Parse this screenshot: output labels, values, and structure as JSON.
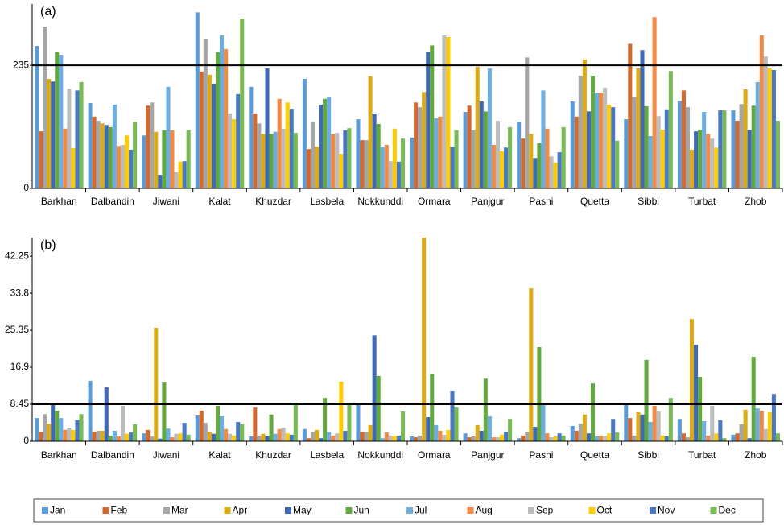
{
  "chart_data": [
    {
      "type": "bar",
      "label": "(a)",
      "categories": [
        "Barkhan",
        "Dalbandin",
        "Jiwani",
        "Kalat",
        "Khuzdar",
        "Lasbela",
        "Nokkunddi",
        "Ormara",
        "Panjgur",
        "Pasni",
        "Quetta",
        "Sibbi",
        "Turbat",
        "Zhob"
      ],
      "series": [
        {
          "name": "Jan",
          "color": "#5b9bd5",
          "values": [
            272,
            163,
            101,
            336,
            194,
            209,
            132,
            97,
            146,
            127,
            166,
            132,
            167,
            149
          ]
        },
        {
          "name": "Feb",
          "color": "#d2692f",
          "values": [
            109,
            137,
            158,
            223,
            143,
            75,
            92,
            164,
            158,
            95,
            137,
            276,
            187,
            129
          ]
        },
        {
          "name": "Mar",
          "color": "#a5a5a5",
          "values": [
            309,
            129,
            164,
            286,
            124,
            127,
            92,
            155,
            111,
            250,
            215,
            175,
            155,
            161
          ]
        },
        {
          "name": "Apr",
          "color": "#dcaa14",
          "values": [
            209,
            124,
            108,
            217,
            104,
            80,
            214,
            184,
            232,
            104,
            246,
            229,
            74,
            189
          ]
        },
        {
          "name": "May",
          "color": "#3f68b5",
          "values": [
            204,
            121,
            26,
            200,
            229,
            160,
            143,
            261,
            166,
            58,
            147,
            264,
            109,
            112
          ]
        },
        {
          "name": "Jun",
          "color": "#62a83e",
          "values": [
            261,
            117,
            111,
            260,
            104,
            171,
            123,
            273,
            147,
            86,
            215,
            157,
            112,
            158
          ]
        },
        {
          "name": "Jul",
          "color": "#6aaee2",
          "values": [
            255,
            160,
            194,
            292,
            108,
            175,
            80,
            134,
            229,
            187,
            183,
            100,
            146,
            203
          ]
        },
        {
          "name": "Aug",
          "color": "#f08a45",
          "values": [
            114,
            81,
            111,
            266,
            171,
            104,
            83,
            137,
            83,
            114,
            183,
            327,
            104,
            292
          ]
        },
        {
          "name": "Sep",
          "color": "#bcbcbc",
          "values": [
            190,
            83,
            31,
            143,
            114,
            106,
            52,
            292,
            129,
            61,
            192,
            138,
            95,
            252
          ]
        },
        {
          "name": "Oct",
          "color": "#ffcc00",
          "values": [
            77,
            101,
            51,
            132,
            164,
            66,
            114,
            289,
            71,
            49,
            160,
            112,
            78,
            229
          ]
        },
        {
          "name": "Nov",
          "color": "#4a78c8",
          "values": [
            187,
            74,
            52,
            180,
            152,
            111,
            51,
            80,
            78,
            69,
            155,
            151,
            149,
            226
          ]
        },
        {
          "name": "Dec",
          "color": "#78bb55",
          "values": [
            203,
            127,
            111,
            324,
            106,
            115,
            95,
            111,
            117,
            117,
            91,
            224,
            149,
            129
          ]
        }
      ],
      "ylim": [
        0,
        352
      ],
      "yticks": [
        0,
        235
      ],
      "reference_line": 235
    },
    {
      "type": "bar",
      "label": "(b)",
      "categories": [
        "Barkhan",
        "Dalbandin",
        "Jiwani",
        "Kalat",
        "Khuzdar",
        "Lasbela",
        "Nokkunddi",
        "Ormara",
        "Panjgur",
        "Pasni",
        "Quetta",
        "Sibbi",
        "Turbat",
        "Zhob"
      ],
      "series": [
        {
          "values": [
            5.3,
            13.8,
            1.8,
            5.9,
            1.1,
            2.8,
            8.3,
            1.1,
            1.8,
            0.7,
            3.5,
            8.3,
            5.1,
            1.5
          ]
        },
        {
          "values": [
            2.2,
            2.2,
            2.6,
            7.0,
            7.7,
            0.7,
            2.2,
            0.9,
            0.9,
            1.3,
            2.4,
            5.3,
            1.8,
            1.8
          ]
        },
        {
          "values": [
            6.2,
            2.4,
            1.1,
            4.2,
            1.3,
            2.2,
            2.2,
            1.3,
            1.1,
            2.2,
            4.0,
            1.3,
            0.9,
            3.9
          ]
        },
        {
          "values": [
            4.0,
            2.4,
            25.9,
            2.2,
            1.7,
            2.6,
            3.7,
            46.5,
            3.7,
            34.9,
            6.1,
            6.6,
            27.9,
            7.2
          ]
        },
        {
          "values": [
            8.4,
            12.3,
            0.6,
            1.7,
            1.1,
            0.7,
            24.2,
            5.5,
            2.4,
            3.3,
            1.8,
            6.1,
            22.0,
            0.7
          ]
        },
        {
          "values": [
            7.0,
            1.3,
            13.4,
            8.1,
            6.1,
            9.9,
            14.9,
            15.4,
            14.3,
            21.5,
            13.2,
            18.6,
            14.7,
            19.3
          ]
        },
        {
          "values": [
            5.3,
            2.4,
            2.9,
            5.7,
            1.7,
            2.2,
            0.7,
            3.7,
            5.7,
            8.3,
            1.1,
            4.4,
            4.6,
            7.5
          ]
        },
        {
          "values": [
            2.6,
            1.1,
            0.9,
            2.8,
            2.8,
            1.3,
            2.0,
            2.4,
            0.9,
            1.8,
            1.3,
            8.1,
            1.3,
            7.0
          ]
        },
        {
          "values": [
            3.1,
            8.1,
            1.7,
            1.7,
            3.1,
            1.8,
            1.3,
            1.5,
            0.9,
            0.9,
            1.3,
            6.8,
            8.1,
            2.8
          ]
        },
        {
          "values": [
            2.6,
            1.7,
            1.8,
            1.3,
            1.8,
            13.6,
            1.3,
            2.6,
            1.5,
            1.1,
            1.8,
            1.3,
            1.8,
            6.6
          ]
        },
        {
          "values": [
            4.8,
            2.0,
            4.2,
            4.4,
            1.5,
            2.4,
            1.3,
            11.6,
            2.2,
            1.8,
            5.1,
            1.1,
            4.8,
            10.8
          ]
        },
        {
          "values": [
            6.2,
            3.9,
            1.5,
            3.9,
            8.8,
            8.8,
            6.8,
            7.7,
            5.1,
            1.3,
            2.0,
            9.9,
            0.7,
            1.8
          ]
        }
      ],
      "ylim": [
        0,
        46.5
      ],
      "yticks": [
        0,
        8.45,
        16.9,
        25.35,
        33.8,
        42.25
      ],
      "reference_line": 8.45
    }
  ]
}
